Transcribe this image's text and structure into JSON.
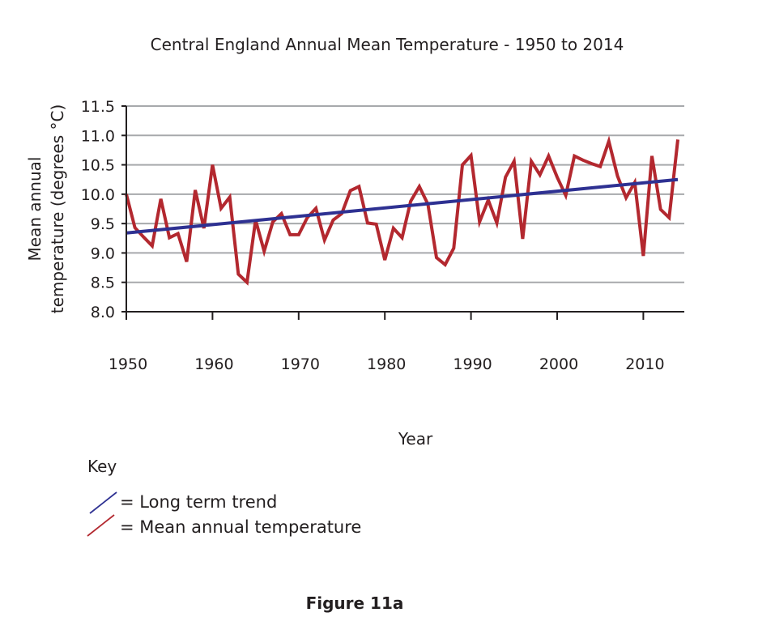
{
  "chart_data": {
    "type": "line",
    "title": "Central England Annual Mean Temperature - 1950 to 2014",
    "xlabel": "Year",
    "ylabel": [
      "Mean annual",
      "temperature (degrees °C)"
    ],
    "xlim": [
      1950,
      2014
    ],
    "ylim": [
      8.0,
      11.5
    ],
    "x_ticks": [
      "1950",
      "1960",
      "1970",
      "1980",
      "1990",
      "2000",
      "2010"
    ],
    "y_ticks": [
      "8.0",
      "8.5",
      "9.0",
      "9.5",
      "10.0",
      "10.5",
      "11.0",
      "11.5"
    ],
    "grid": "horizontal",
    "legend_title": "Key",
    "series": [
      {
        "name": "Mean annual temperature",
        "color": "#b3282f",
        "x": [
          1950,
          1951,
          1952,
          1953,
          1954,
          1955,
          1956,
          1957,
          1958,
          1959,
          1960,
          1961,
          1962,
          1963,
          1964,
          1965,
          1966,
          1967,
          1968,
          1969,
          1970,
          1971,
          1972,
          1973,
          1974,
          1975,
          1976,
          1977,
          1978,
          1979,
          1980,
          1981,
          1982,
          1983,
          1984,
          1985,
          1986,
          1987,
          1988,
          1989,
          1990,
          1991,
          1992,
          1993,
          1994,
          1995,
          1996,
          1997,
          1998,
          1999,
          2000,
          2001,
          2002,
          2003,
          2004,
          2005,
          2006,
          2007,
          2008,
          2009,
          2010,
          2011,
          2012,
          2013,
          2014
        ],
        "values": [
          10.0,
          9.43,
          9.27,
          9.12,
          9.92,
          9.26,
          9.33,
          8.85,
          10.07,
          9.42,
          10.5,
          9.76,
          9.95,
          8.64,
          8.5,
          9.56,
          9.03,
          9.53,
          9.67,
          9.31,
          9.31,
          9.6,
          9.76,
          9.22,
          9.56,
          9.67,
          10.06,
          10.13,
          9.51,
          9.49,
          8.88,
          9.42,
          9.26,
          9.88,
          10.13,
          9.83,
          8.92,
          8.8,
          9.08,
          10.5,
          10.66,
          9.53,
          9.9,
          9.51,
          10.29,
          10.56,
          9.24,
          10.56,
          10.33,
          10.65,
          10.29,
          9.98,
          10.65,
          10.58,
          10.52,
          10.47,
          10.9,
          10.31,
          9.94,
          10.2,
          8.95,
          10.65,
          9.74,
          9.6,
          10.93
        ]
      },
      {
        "name": "Long term trend",
        "color": "#2e3192",
        "x": [
          1950,
          2014
        ],
        "values": [
          9.34,
          10.25
        ]
      }
    ]
  },
  "legend": {
    "title": "Key",
    "items": [
      {
        "label": "= Long term trend",
        "color": "#2e3192"
      },
      {
        "label": "= Mean annual temperature",
        "color": "#b3282f"
      }
    ]
  },
  "caption": "Figure 11a"
}
